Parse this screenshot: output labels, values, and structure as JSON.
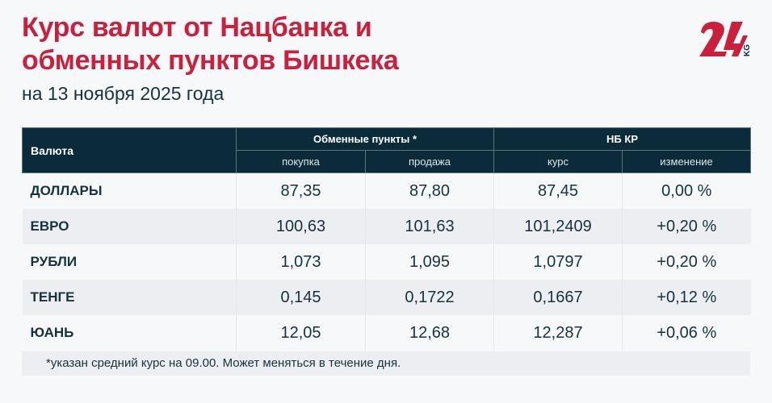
{
  "header": {
    "title_line1": "Курс валют от Нацбанка и",
    "title_line2": "обменных пунктов Бишкека",
    "subtitle": "на 13 ноября 2025 года",
    "logo_text": "24 KG",
    "accent": "#c8203d",
    "header_bg": "#0b2b3a"
  },
  "table": {
    "col_currency": "Валюта",
    "group_exchange": "Обменные пункты *",
    "group_nbkr": "НБ КР",
    "sub": [
      "покупка",
      "продажа",
      "курс",
      "изменение"
    ],
    "rows": [
      {
        "name": "ДОЛЛАРЫ",
        "buy": "87,35",
        "sell": "87,80",
        "rate": "87,45",
        "change": "0,00 %"
      },
      {
        "name": "ЕВРО",
        "buy": "100,63",
        "sell": "101,63",
        "rate": "101,2409",
        "change": "+0,20 %"
      },
      {
        "name": "РУБЛИ",
        "buy": "1,073",
        "sell": "1,095",
        "rate": "1,0797",
        "change": "+0,20 %"
      },
      {
        "name": "ТЕНГЕ",
        "buy": "0,145",
        "sell": "0,1722",
        "rate": "0,1667",
        "change": "+0,12 %"
      },
      {
        "name": "ЮАНЬ",
        "buy": "12,05",
        "sell": "12,68",
        "rate": "12,287",
        "change": "+0,06 %"
      }
    ]
  },
  "footnote": "*указан средний курс на 09.00. Может меняться в течение дня."
}
